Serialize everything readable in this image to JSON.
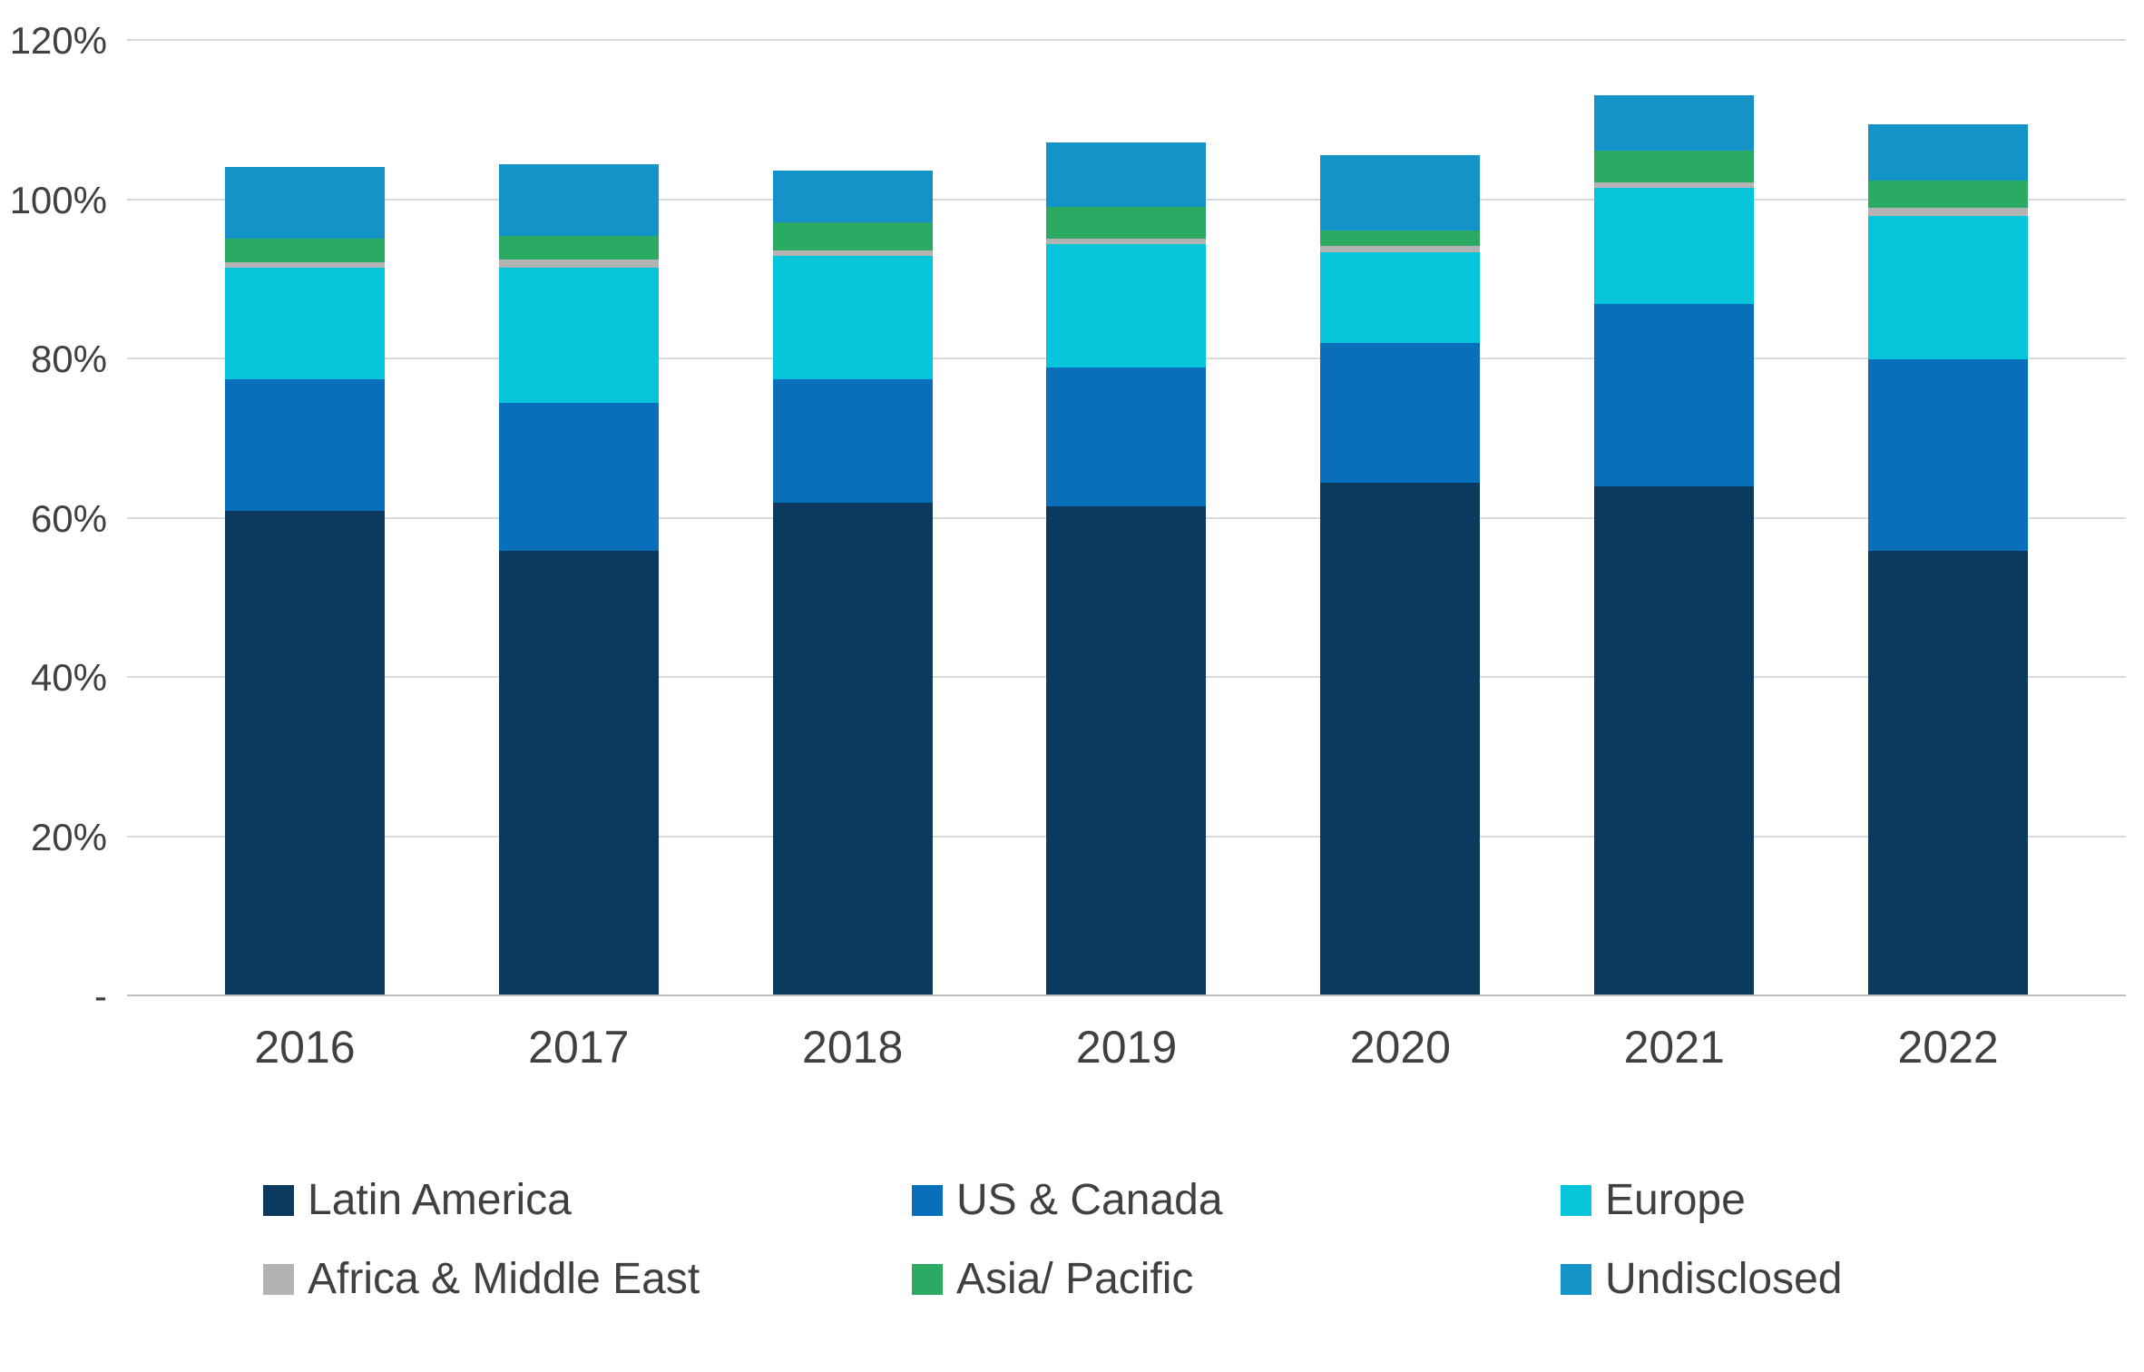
{
  "chart_data": {
    "type": "bar",
    "stacked": true,
    "title": "",
    "xlabel": "",
    "ylabel": "",
    "categories": [
      "2016",
      "2017",
      "2018",
      "2019",
      "2020",
      "2021",
      "2022"
    ],
    "series": [
      {
        "name": "Latin America",
        "color": "#0c3a5e",
        "values": [
          61,
          56,
          62,
          61.5,
          64.5,
          64,
          56
        ]
      },
      {
        "name": "US & Canada",
        "color": "#0a6fba",
        "values": [
          16.5,
          18.5,
          15.5,
          17.5,
          17.5,
          23,
          24
        ]
      },
      {
        "name": "Europe",
        "color": "#06c4d9",
        "values": [
          14,
          17,
          15.5,
          15.5,
          11.5,
          14.5,
          18
        ]
      },
      {
        "name": "Africa & Middle East",
        "color": "#b3b3b3",
        "values": [
          0.7,
          1,
          0.7,
          0.7,
          0.7,
          0.7,
          1
        ]
      },
      {
        "name": "Asia/ Pacific",
        "color": "#2baa63",
        "values": [
          3,
          3,
          3.5,
          4,
          2,
          4,
          3.5
        ]
      },
      {
        "name": "Undisclosed",
        "color": "#1493c8",
        "values": [
          9,
          9,
          6.5,
          8,
          9.5,
          7,
          7
        ]
      }
    ],
    "ylim": [
      0,
      120
    ],
    "yticks": [
      {
        "value": 0,
        "label": "-"
      },
      {
        "value": 20,
        "label": "20%"
      },
      {
        "value": 40,
        "label": "40%"
      },
      {
        "value": 60,
        "label": "60%"
      },
      {
        "value": 80,
        "label": "80%"
      },
      {
        "value": 100,
        "label": "100%"
      },
      {
        "value": 120,
        "label": "120%"
      }
    ],
    "grid": true,
    "legend_position": "bottom"
  }
}
